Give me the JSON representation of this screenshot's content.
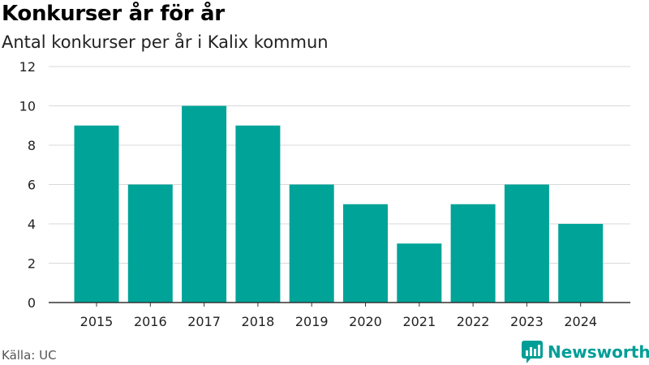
{
  "header": {
    "title": "Konkurser år för år",
    "subtitle": "Antal konkurser per år i Kalix kommun"
  },
  "footer": {
    "source": "Källa: UC",
    "brand": "Newsworthy",
    "brand_icon": "bar-chart-speech-bubble-icon"
  },
  "colors": {
    "bar": "#00a398",
    "grid": "#d9d9d9",
    "axis": "#333333",
    "brand": "#009e96"
  },
  "chart_data": {
    "type": "bar",
    "title": "Konkurser år för år",
    "subtitle": "Antal konkurser per år i Kalix kommun",
    "categories": [
      "2015",
      "2016",
      "2017",
      "2018",
      "2019",
      "2020",
      "2021",
      "2022",
      "2023",
      "2024"
    ],
    "values": [
      9,
      6,
      10,
      9,
      6,
      5,
      3,
      5,
      6,
      4
    ],
    "ylim": [
      0,
      12
    ],
    "yticks": [
      0,
      2,
      4,
      6,
      8,
      10,
      12
    ],
    "xlabel": "",
    "ylabel": "",
    "grid": true,
    "legend": "none"
  }
}
